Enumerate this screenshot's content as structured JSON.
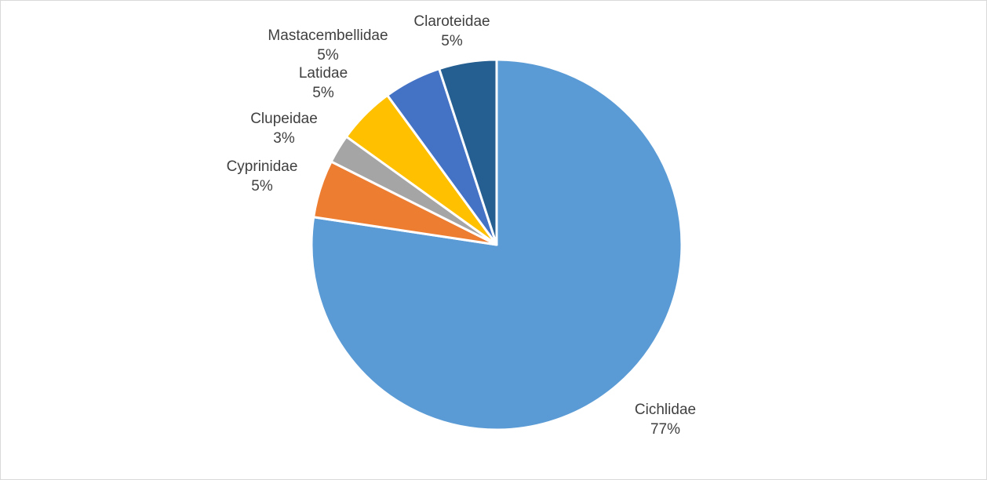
{
  "chart_data": {
    "type": "pie",
    "title": "",
    "legend": "none",
    "slices": [
      {
        "name": "Cichlidae",
        "label": "77%",
        "value": 77,
        "color": "#5B9BD5"
      },
      {
        "name": "Cyprinidae",
        "label": "5%",
        "value": 5,
        "color": "#ED7D31"
      },
      {
        "name": "Clupeidae",
        "label": "3%",
        "value": 2.5,
        "color": "#A5A5A5"
      },
      {
        "name": "Latidae",
        "label": "5%",
        "value": 5,
        "color": "#FFC000"
      },
      {
        "name": "Mastacembellidae",
        "label": "5%",
        "value": 5,
        "color": "#4472C4"
      },
      {
        "name": "Claroteidae",
        "label": "5%",
        "value": 5,
        "color": "#255E91"
      }
    ]
  }
}
